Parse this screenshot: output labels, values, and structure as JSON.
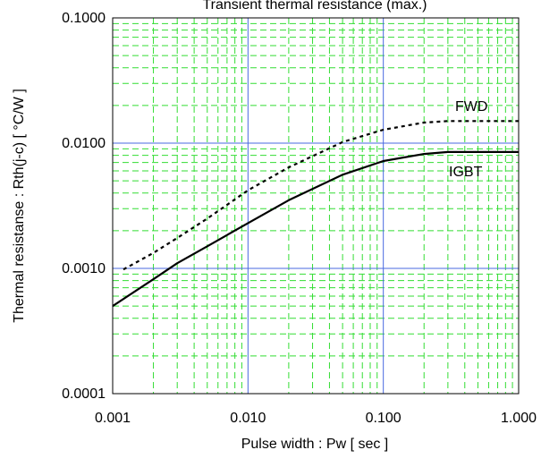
{
  "chart_data": {
    "type": "line",
    "title": "Transient thermal resistance (max.)",
    "xlabel": "Pulse width  :  Pw  [ sec ]",
    "ylabel": "Thermal resistanse  :  Rth(j-c)  [ °C/W ]",
    "xscale": "log",
    "yscale": "log",
    "xlim": [
      0.001,
      1.0
    ],
    "ylim": [
      0.0001,
      0.1
    ],
    "xticks": [
      {
        "value": 0.001,
        "label": "0.001"
      },
      {
        "value": 0.01,
        "label": "0.010"
      },
      {
        "value": 0.1,
        "label": "0.100"
      },
      {
        "value": 1.0,
        "label": "1.000"
      }
    ],
    "yticks": [
      {
        "value": 0.0001,
        "label": "0.0001"
      },
      {
        "value": 0.001,
        "label": "0.0010"
      },
      {
        "value": 0.01,
        "label": "0.0100"
      },
      {
        "value": 0.1,
        "label": "0.1000"
      }
    ],
    "grid": true,
    "colors": {
      "major_grid": "#4a6ae0",
      "minor_grid": "#33dd33",
      "series": "#000000"
    },
    "series": [
      {
        "name": "FWD",
        "style": "dotted",
        "x": [
          0.0012,
          0.002,
          0.003,
          0.005,
          0.01,
          0.02,
          0.05,
          0.1,
          0.2,
          0.3,
          0.5,
          1.0
        ],
        "y": [
          0.00098,
          0.00133,
          0.00175,
          0.0025,
          0.0042,
          0.0064,
          0.0102,
          0.0128,
          0.0146,
          0.015,
          0.015,
          0.015
        ]
      },
      {
        "name": "IGBT",
        "style": "solid",
        "x": [
          0.001,
          0.002,
          0.003,
          0.005,
          0.01,
          0.02,
          0.05,
          0.1,
          0.2,
          0.3,
          0.5,
          1.0
        ],
        "y": [
          0.0005,
          0.00082,
          0.0011,
          0.0015,
          0.0023,
          0.0035,
          0.0056,
          0.0072,
          0.0082,
          0.0085,
          0.0085,
          0.0085
        ]
      }
    ]
  }
}
